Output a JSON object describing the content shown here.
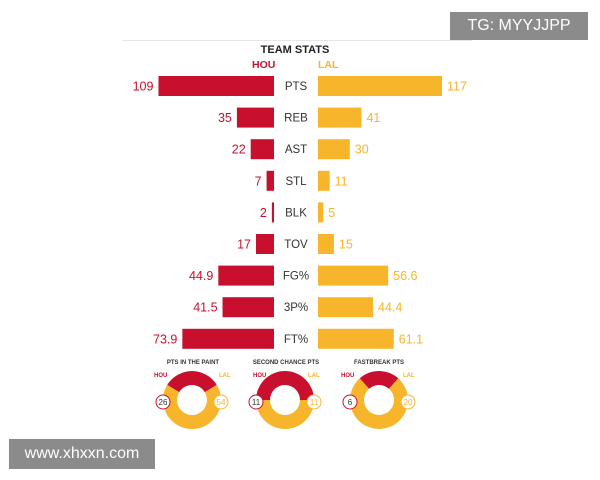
{
  "watermarks": {
    "top_right": "TG: MYYJJPP",
    "bottom_left": "www.xhxxn.com"
  },
  "colors": {
    "home": "#c8102e",
    "away": "#f7b52c"
  },
  "chart_data": [
    {
      "type": "bar",
      "title": "TEAM STATS",
      "home_team": "HOU",
      "away_team": "LAL",
      "categories": [
        "PTS",
        "REB",
        "AST",
        "STL",
        "BLK",
        "TOV",
        "FG%",
        "3P%",
        "FT%"
      ],
      "series": [
        {
          "name": "HOU",
          "values": [
            109,
            35,
            22,
            7,
            2,
            17,
            44.9,
            41.5,
            73.9
          ],
          "labels": [
            "109",
            "35",
            "22",
            "7",
            "2",
            "17",
            "44.9",
            "41.5",
            "73.9"
          ]
        },
        {
          "name": "LAL",
          "values": [
            117,
            41,
            30,
            11,
            5,
            15,
            56.6,
            44.4,
            61.1
          ],
          "labels": [
            "117",
            "41",
            "30",
            "11",
            "5",
            "15",
            "56.6",
            "44.4",
            "61.1"
          ]
        }
      ],
      "groups": [
        {
          "categories": [
            "PTS",
            "REB",
            "AST",
            "STL",
            "BLK",
            "TOV"
          ],
          "max": 117
        },
        {
          "categories": [
            "FG%",
            "3P%",
            "FT%"
          ],
          "max": 100
        }
      ],
      "orientation": "butterfly-horizontal"
    },
    {
      "type": "pie",
      "title": "PTS IN THE PAINT",
      "labels": [
        "HOU",
        "LAL"
      ],
      "values": [
        26,
        54
      ]
    },
    {
      "type": "pie",
      "title": "SECOND CHANCE PTS",
      "labels": [
        "HOU",
        "LAL"
      ],
      "values": [
        11,
        11
      ]
    },
    {
      "type": "pie",
      "title": "FASTBREAK PTS",
      "labels": [
        "HOU",
        "LAL"
      ],
      "values": [
        6,
        20
      ]
    }
  ]
}
